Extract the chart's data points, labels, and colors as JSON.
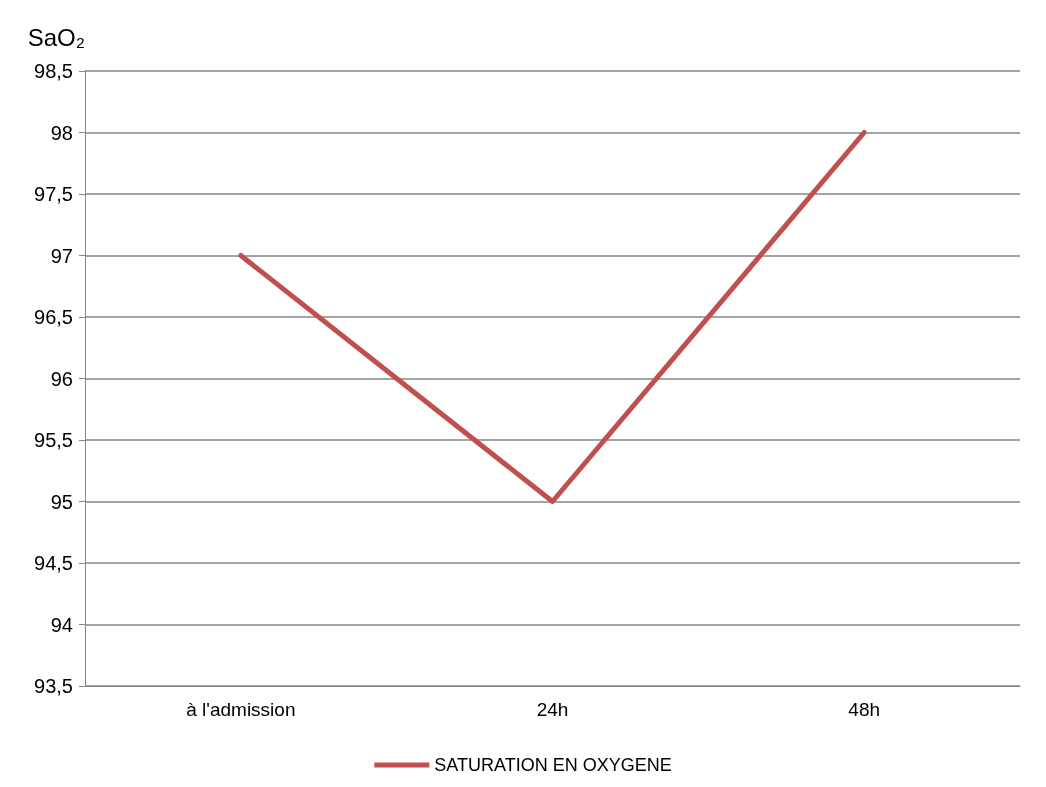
{
  "chart_data": {
    "type": "line",
    "ylabel": "SaO₂",
    "categories": [
      "à l'admission",
      "24h",
      "48h"
    ],
    "series": [
      {
        "name": "SATURATION EN OXYGENE",
        "color": "#c0504d",
        "values": [
          97,
          95,
          98
        ]
      }
    ],
    "ylim": [
      93.5,
      98.5
    ],
    "yticks": [
      {
        "value": 93.5,
        "label": "93,5"
      },
      94,
      {
        "value": 94.5,
        "label": "94,5"
      },
      95,
      {
        "value": 95.5,
        "label": "95,5"
      },
      96,
      {
        "value": 96.5,
        "label": "96,5"
      },
      97,
      {
        "value": 97.5,
        "label": "97,5"
      },
      98,
      {
        "value": 98.5,
        "label": "98,5"
      }
    ],
    "grid": "y",
    "legend": "bottom",
    "marker": "none",
    "line_style": "solid"
  }
}
